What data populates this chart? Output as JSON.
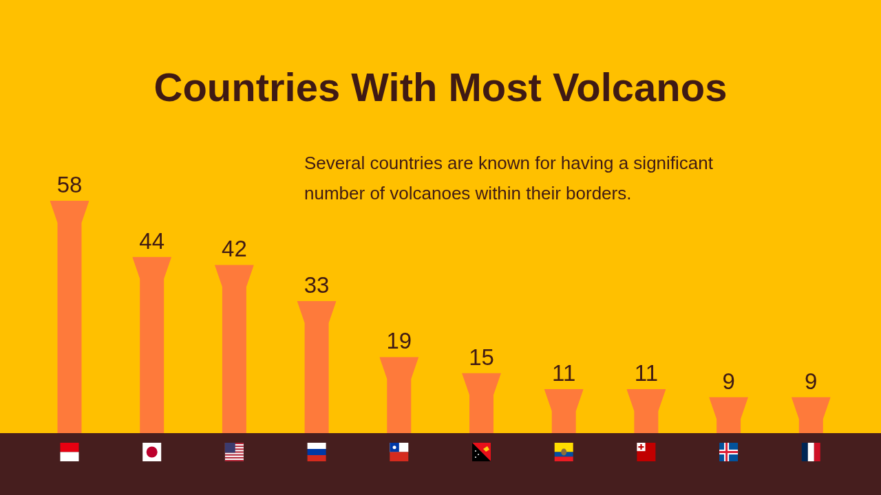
{
  "chart_data": {
    "type": "bar",
    "title": "Countries With Most Volcanos",
    "subtitle": "Several countries are known for having a significant number of volcanoes within their borders.",
    "categories": [
      null,
      null,
      null,
      null,
      null,
      null,
      null,
      null,
      null,
      null
    ],
    "values": [
      58,
      44,
      42,
      33,
      19,
      15,
      11,
      11,
      9,
      9
    ],
    "color": "#fe7a3b",
    "data_labels": true
  }
}
